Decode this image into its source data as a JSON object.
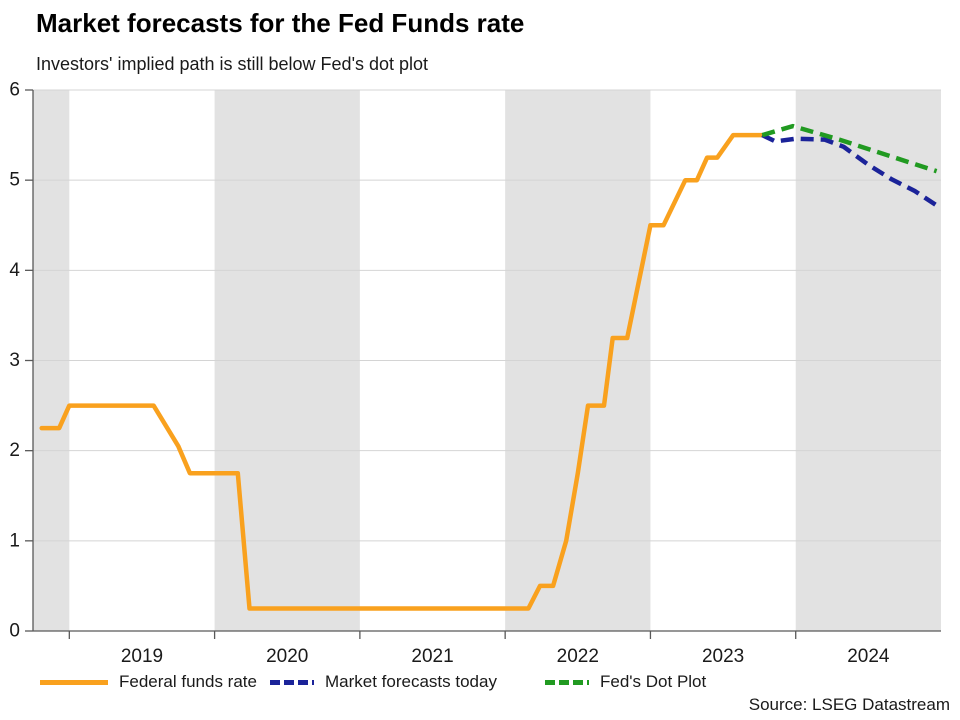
{
  "chart_data": {
    "type": "line",
    "title": "Market forecasts for the Fed Funds rate",
    "subtitle": "Investors' implied path is still below Fed's dot plot",
    "source": "Source: LSEG Datastream",
    "x_axis": {
      "range": [
        2018.75,
        2025.0
      ],
      "tick_marks": [
        2019,
        2020,
        2021,
        2022,
        2023,
        2024
      ],
      "tick_labels": [
        "2019",
        "2020",
        "2021",
        "2022",
        "2023",
        "2024"
      ],
      "tick_label_positions": [
        2019.5,
        2020.5,
        2021.5,
        2022.5,
        2023.5,
        2024.5
      ]
    },
    "y_axis": {
      "range": [
        0,
        6
      ],
      "ticks": [
        0,
        1,
        2,
        3,
        4,
        5,
        6
      ],
      "tick_labels": [
        "0",
        "1",
        "2",
        "3",
        "4",
        "5",
        "6"
      ],
      "gridlines": [
        1,
        2,
        3,
        4,
        5,
        6
      ]
    },
    "shaded_bands": {
      "color": "#e2e2e2",
      "intervals": [
        [
          2018.75,
          2019
        ],
        [
          2020,
          2021
        ],
        [
          2022,
          2023
        ],
        [
          2024,
          2025.0
        ]
      ]
    },
    "grid_color": "#d4d4d4",
    "axis_color": "#595959",
    "legend_position": "bottom-left",
    "series": [
      {
        "name": "Federal funds rate",
        "color": "#F9A11E",
        "dash": "solid",
        "points": [
          [
            2018.81,
            2.25
          ],
          [
            2018.93,
            2.25
          ],
          [
            2019.0,
            2.5
          ],
          [
            2019.58,
            2.5
          ],
          [
            2019.75,
            2.05
          ],
          [
            2019.83,
            1.75
          ],
          [
            2020.16,
            1.75
          ],
          [
            2020.24,
            0.25
          ],
          [
            2022.16,
            0.25
          ],
          [
            2022.24,
            0.5
          ],
          [
            2022.33,
            0.5
          ],
          [
            2022.42,
            1.0
          ],
          [
            2022.5,
            1.75
          ],
          [
            2022.57,
            2.5
          ],
          [
            2022.68,
            2.5
          ],
          [
            2022.74,
            3.25
          ],
          [
            2022.84,
            3.25
          ],
          [
            2023.0,
            4.5
          ],
          [
            2023.09,
            4.5
          ],
          [
            2023.24,
            5.0
          ],
          [
            2023.32,
            5.0
          ],
          [
            2023.39,
            5.25
          ],
          [
            2023.46,
            5.25
          ],
          [
            2023.57,
            5.5
          ],
          [
            2023.77,
            5.5
          ]
        ]
      },
      {
        "name": "Market forecasts today",
        "color": "#1B2399",
        "dash": "dashed",
        "points": [
          [
            2023.77,
            5.5
          ],
          [
            2023.86,
            5.43
          ],
          [
            2024.0,
            5.46
          ],
          [
            2024.2,
            5.45
          ],
          [
            2024.33,
            5.37
          ],
          [
            2024.5,
            5.17
          ],
          [
            2024.66,
            5.01
          ],
          [
            2024.82,
            4.88
          ],
          [
            2024.97,
            4.72
          ]
        ]
      },
      {
        "name": "Fed's Dot Plot",
        "color": "#219A21",
        "dash": "dashed",
        "points": [
          [
            2023.77,
            5.5
          ],
          [
            2023.98,
            5.6
          ],
          [
            2024.3,
            5.45
          ],
          [
            2024.97,
            5.1
          ]
        ]
      }
    ]
  }
}
